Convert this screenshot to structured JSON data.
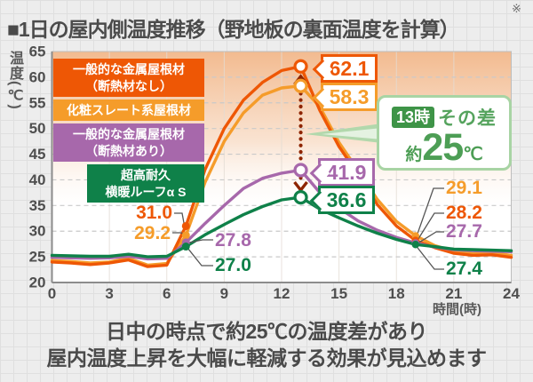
{
  "header": {
    "title": "■1日の屋内側温度推移（野地板の裏面温度を計算）",
    "note_mark": "※"
  },
  "chart_data": {
    "type": "line",
    "x": [
      0,
      1,
      2,
      3,
      4,
      5,
      6,
      7,
      8,
      9,
      10,
      11,
      12,
      13,
      14,
      15,
      16,
      17,
      18,
      19,
      20,
      21,
      22,
      23,
      24
    ],
    "series": [
      {
        "name": "一般的な金属屋根材（断熱材なし）",
        "color": "#ee5705",
        "values": [
          24.0,
          23.8,
          23.5,
          23.8,
          24.4,
          23.1,
          23.4,
          31.0,
          42.0,
          50.0,
          55.5,
          59.0,
          61.3,
          62.1,
          53.5,
          46.5,
          41.0,
          35.2,
          31.0,
          28.2,
          26.8,
          25.7,
          25.3,
          25.4,
          24.9
        ]
      },
      {
        "name": "化粧スレート系屋根材",
        "color": "#f59c2a",
        "values": [
          24.3,
          24.1,
          23.8,
          24.0,
          24.7,
          23.4,
          23.7,
          29.2,
          39.5,
          47.5,
          53.0,
          56.5,
          57.9,
          58.3,
          54.2,
          47.3,
          41.8,
          36.2,
          31.9,
          29.1,
          27.2,
          26.1,
          25.6,
          25.8,
          25.3
        ]
      },
      {
        "name": "一般的な金属屋根材（断熱材あり）",
        "color": "#a768ab",
        "values": [
          24.9,
          24.8,
          24.7,
          24.8,
          25.1,
          24.6,
          24.7,
          27.8,
          31.5,
          35.0,
          38.3,
          40.3,
          41.3,
          41.9,
          37.5,
          34.5,
          32.0,
          30.2,
          28.8,
          27.7,
          26.9,
          26.4,
          26.2,
          26.1,
          26.0
        ]
      },
      {
        "name": "超高耐久 横暖ルーフα S",
        "color": "#0f8149",
        "values": [
          25.3,
          25.2,
          25.1,
          25.1,
          25.5,
          25.0,
          25.1,
          27.0,
          29.3,
          31.3,
          33.2,
          34.8,
          36.1,
          36.6,
          34.3,
          32.6,
          31.0,
          29.6,
          28.4,
          27.4,
          27.0,
          26.5,
          26.4,
          26.3,
          26.2
        ]
      }
    ],
    "title": "1日の屋内側温度推移（野地板の裏面温度を計算）",
    "xlabel": "時間(時)",
    "ylabel": "温度(℃)",
    "ylim": [
      20,
      65
    ],
    "yticks": [
      65,
      60,
      55,
      50,
      45,
      40,
      35,
      30,
      25,
      20
    ],
    "xticks": [
      0,
      3,
      6,
      9,
      12,
      15,
      18,
      21,
      24
    ],
    "grid": "horizontal-dashed",
    "legend_position": "inside-top-left",
    "labeled_hours": {
      "morning": 7,
      "peak": 13,
      "evening": 19
    }
  },
  "legend": {
    "items": [
      {
        "line1": "一般的な金属屋根材",
        "line2": "（断熱材なし）",
        "color": "#ee5705"
      },
      {
        "line1": "化粧スレート系屋根材",
        "line2": "",
        "color": "#f59c2a"
      },
      {
        "line1": "一般的な金属屋根材",
        "line2": "（断熱材あり）",
        "color": "#a768ab"
      },
      {
        "line1": "超高耐久",
        "line2": "横暖ルーフα S",
        "color": "#0f8149"
      }
    ]
  },
  "labels": {
    "peak": [
      {
        "text": "62.1",
        "series": 0
      },
      {
        "text": "58.3",
        "series": 1
      },
      {
        "text": "41.9",
        "series": 2
      },
      {
        "text": "36.6",
        "series": 3
      }
    ],
    "morning": [
      {
        "text": "31.0",
        "series": 0
      },
      {
        "text": "29.2",
        "series": 1
      },
      {
        "text": "27.8",
        "series": 2
      },
      {
        "text": "27.0",
        "series": 3
      }
    ],
    "evening": [
      {
        "text": "29.1",
        "series": 1
      },
      {
        "text": "28.2",
        "series": 0
      },
      {
        "text": "27.7",
        "series": 2
      },
      {
        "text": "27.4",
        "series": 3
      }
    ]
  },
  "callout": {
    "time_badge": "13時",
    "label": "その差",
    "prefix": "約",
    "value": "25",
    "unit": "℃"
  },
  "footer": {
    "line1": "日中の時点で約25℃の温度差があり",
    "line2": "屋内温度上昇を大幅に軽減する効果が見込めます"
  },
  "colors": {
    "diff_arrow": "#8e2400",
    "callout_border": "#a8d4a4",
    "callout_text": "#55a35d",
    "badge_bg": "#3e9447",
    "gradient_top": "#f1b383",
    "plot_bg": "#ffffff",
    "grid_dash": "#c9c9c9",
    "axis": "#8c8c8c",
    "tick_text": "#4f4f4f",
    "connector": "#555555"
  }
}
